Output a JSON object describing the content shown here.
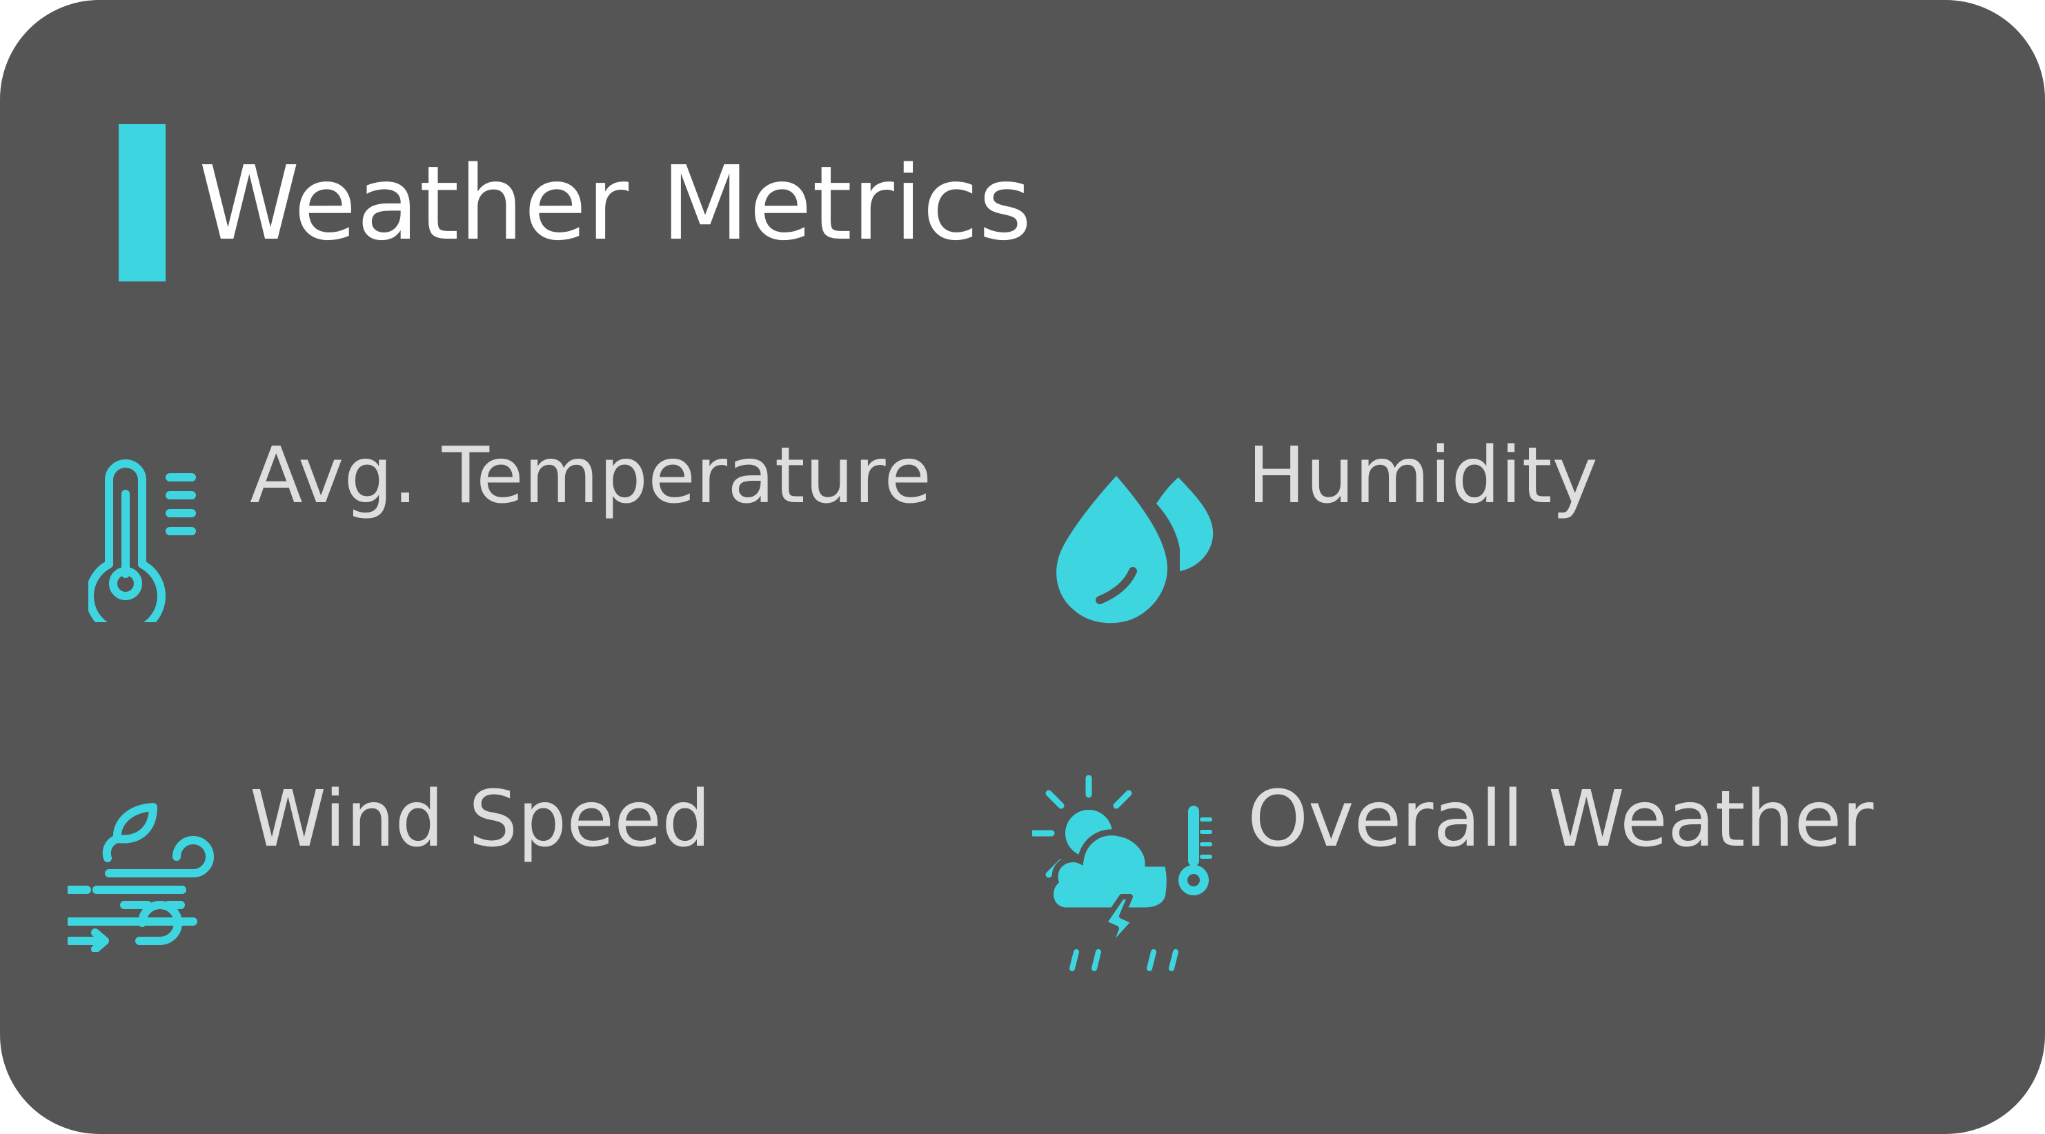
{
  "card": {
    "title": "Weather Metrics",
    "accent_color": "#3dd6e0",
    "background_color": "#555555"
  },
  "metrics": [
    {
      "label": "Avg. Temperature",
      "icon": "thermometer-icon"
    },
    {
      "label": "Humidity",
      "icon": "water-drops-icon"
    },
    {
      "label": "Wind Speed",
      "icon": "wind-icon"
    },
    {
      "label": "Overall Weather",
      "icon": "storm-weather-icon"
    }
  ]
}
